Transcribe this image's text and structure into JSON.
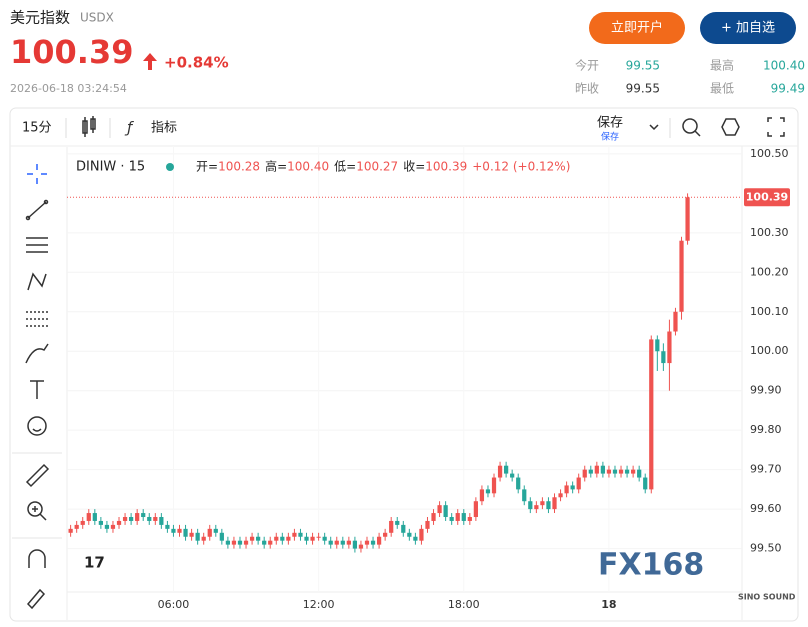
{
  "header": {
    "title": "美元指数",
    "code": "USDX",
    "price": "100.39",
    "change": "+0.84%",
    "time": "2026-06-18 03:24:54",
    "buttons": [
      "立即开户",
      "+ 加自选"
    ],
    "stats": [
      {
        "label": "今开",
        "value": "99.55"
      },
      {
        "label": "最高",
        "value": "100.40"
      },
      {
        "label": "昨收",
        "value": "99.55"
      },
      {
        "label": "最低",
        "value": "99.49"
      }
    ]
  },
  "toolbar": {
    "interval": "15分",
    "indicators": "指标",
    "save": "保存",
    "save_sub": "保存"
  },
  "chart_data": {
    "type": "candlestick",
    "symbol": "DINIW · 15",
    "legend": [
      {
        "label": "开=",
        "value": "100.28"
      },
      {
        "label": "高=",
        "value": "100.40"
      },
      {
        "label": "低=",
        "value": "100.27"
      },
      {
        "label": "收=",
        "value": "100.39"
      }
    ],
    "legend_change": "+0.12 (+0.12%)",
    "last_price": 100.39,
    "watermark": "FX168",
    "watermark_sub": "SINO SOUND",
    "up_color": "#ef5350",
    "down_color": "#26a69a",
    "grid": true,
    "xlim": [
      1.6,
      29.5
    ],
    "ylim": [
      99.39,
      100.52
    ],
    "xticks": [
      {
        "value": 6,
        "label": "06:00"
      },
      {
        "value": 12,
        "label": "12:00"
      },
      {
        "value": 18,
        "label": "18:00"
      },
      {
        "value": 24,
        "label": "18"
      }
    ],
    "yticks": [
      {
        "value": 99.5,
        "label": "99.50"
      },
      {
        "value": 99.6,
        "label": "99.60"
      },
      {
        "value": 99.7,
        "label": "99.70"
      },
      {
        "value": 99.8,
        "label": "99.80"
      },
      {
        "value": 99.9,
        "label": "99.90"
      },
      {
        "value": 100,
        "label": "100.00"
      },
      {
        "value": 100.1,
        "label": "100.10"
      },
      {
        "value": 100.2,
        "label": "100.20"
      },
      {
        "value": 100.3,
        "label": "100.30"
      },
      {
        "value": 100.5,
        "label": "100.50"
      }
    ],
    "x": [
      1.75,
      2,
      2.25,
      2.5,
      2.75,
      3,
      3.25,
      3.5,
      3.75,
      4,
      4.25,
      4.5,
      4.75,
      5,
      5.25,
      5.5,
      5.75,
      6,
      6.25,
      6.5,
      6.75,
      7,
      7.25,
      7.5,
      7.75,
      8,
      8.25,
      8.5,
      8.75,
      9,
      9.25,
      9.5,
      9.75,
      10,
      10.25,
      10.5,
      10.75,
      11,
      11.25,
      11.5,
      11.75,
      12,
      12.25,
      12.5,
      12.75,
      13,
      13.25,
      13.5,
      13.75,
      14,
      14.25,
      14.5,
      14.75,
      15,
      15.25,
      15.5,
      15.75,
      16,
      16.25,
      16.5,
      16.75,
      17,
      17.25,
      17.5,
      17.75,
      18,
      18.25,
      18.5,
      18.75,
      19,
      19.25,
      19.5,
      19.75,
      20,
      20.25,
      20.5,
      20.75,
      21,
      21.25,
      21.5,
      21.75,
      22,
      22.25,
      22.5,
      22.75,
      23,
      23.25,
      23.5,
      23.75,
      24,
      24.25,
      24.5,
      24.75,
      25,
      25.25,
      25.5,
      25.75,
      26,
      26.25,
      26.5,
      26.75,
      27,
      27.25
    ],
    "open": [
      99.54,
      99.55,
      99.56,
      99.57,
      99.59,
      99.57,
      99.56,
      99.55,
      99.56,
      99.57,
      99.58,
      99.57,
      99.59,
      99.58,
      99.57,
      99.58,
      99.56,
      99.55,
      99.54,
      99.55,
      99.53,
      99.54,
      99.52,
      99.53,
      99.55,
      99.54,
      99.52,
      99.51,
      99.52,
      99.51,
      99.52,
      99.53,
      99.52,
      99.51,
      99.52,
      99.53,
      99.52,
      99.53,
      99.54,
      99.53,
      99.52,
      99.53,
      99.53,
      99.52,
      99.51,
      99.52,
      99.51,
      99.52,
      99.5,
      99.51,
      99.52,
      99.51,
      99.53,
      99.54,
      99.57,
      99.56,
      99.54,
      99.53,
      99.52,
      99.55,
      99.57,
      99.59,
      99.61,
      99.58,
      99.57,
      99.59,
      99.57,
      99.58,
      99.62,
      99.65,
      99.64,
      99.68,
      99.71,
      99.69,
      99.68,
      99.65,
      99.62,
      99.6,
      99.61,
      99.62,
      99.6,
      99.63,
      99.64,
      99.66,
      99.65,
      99.68,
      99.7,
      99.69,
      99.71,
      99.69,
      99.7,
      99.69,
      99.7,
      99.69,
      99.7,
      99.68,
      99.65,
      100.03,
      100.0,
      99.97,
      100.05,
      100.1,
      100.28
    ],
    "high": [
      99.56,
      99.57,
      99.58,
      99.6,
      99.6,
      99.58,
      99.57,
      99.57,
      99.58,
      99.59,
      99.59,
      99.6,
      99.6,
      99.59,
      99.59,
      99.59,
      99.57,
      99.56,
      99.56,
      99.56,
      99.55,
      99.55,
      99.54,
      99.56,
      99.56,
      99.55,
      99.53,
      99.53,
      99.53,
      99.53,
      99.54,
      99.54,
      99.53,
      99.53,
      99.54,
      99.54,
      99.54,
      99.55,
      99.55,
      99.54,
      99.54,
      99.54,
      99.54,
      99.53,
      99.53,
      99.53,
      99.53,
      99.53,
      99.52,
      99.53,
      99.53,
      99.54,
      99.55,
      99.58,
      99.58,
      99.57,
      99.55,
      99.54,
      99.56,
      99.58,
      99.6,
      99.62,
      99.62,
      99.59,
      99.6,
      99.6,
      99.59,
      99.63,
      99.66,
      99.66,
      99.69,
      99.72,
      99.72,
      99.7,
      99.69,
      99.66,
      99.63,
      99.62,
      99.63,
      99.63,
      99.64,
      99.65,
      99.67,
      99.67,
      99.69,
      99.71,
      99.71,
      99.72,
      99.72,
      99.71,
      99.71,
      99.71,
      99.71,
      99.71,
      99.71,
      99.69,
      100.04,
      100.04,
      100.02,
      100.08,
      100.11,
      100.29,
      100.4
    ],
    "low": [
      99.53,
      99.54,
      99.55,
      99.56,
      99.56,
      99.55,
      99.54,
      99.54,
      99.55,
      99.56,
      99.56,
      99.56,
      99.57,
      99.56,
      99.56,
      99.55,
      99.54,
      99.53,
      99.53,
      99.52,
      99.52,
      99.51,
      99.51,
      99.52,
      99.53,
      99.51,
      99.5,
      99.5,
      99.5,
      99.5,
      99.51,
      99.51,
      99.5,
      99.5,
      99.51,
      99.51,
      99.51,
      99.52,
      99.52,
      99.51,
      99.51,
      99.52,
      99.51,
      99.5,
      99.5,
      99.5,
      99.5,
      99.49,
      99.49,
      99.5,
      99.5,
      99.5,
      99.52,
      99.53,
      99.55,
      99.53,
      99.52,
      99.51,
      99.51,
      99.54,
      99.56,
      99.58,
      99.57,
      99.56,
      99.56,
      99.56,
      99.56,
      99.57,
      99.61,
      99.63,
      99.63,
      99.67,
      99.68,
      99.67,
      99.64,
      99.61,
      99.59,
      99.59,
      99.6,
      99.59,
      99.59,
      99.62,
      99.63,
      99.64,
      99.64,
      99.67,
      99.68,
      99.68,
      99.68,
      99.68,
      99.68,
      99.68,
      99.68,
      99.68,
      99.67,
      99.64,
      99.64,
      99.95,
      99.95,
      99.9,
      100.04,
      100.08,
      100.27
    ],
    "close": [
      99.55,
      99.56,
      99.57,
      99.59,
      99.57,
      99.56,
      99.55,
      99.56,
      99.57,
      99.58,
      99.57,
      99.59,
      99.58,
      99.57,
      99.58,
      99.56,
      99.55,
      99.54,
      99.55,
      99.53,
      99.54,
      99.52,
      99.53,
      99.55,
      99.54,
      99.52,
      99.51,
      99.52,
      99.51,
      99.52,
      99.53,
      99.52,
      99.51,
      99.52,
      99.53,
      99.52,
      99.53,
      99.54,
      99.53,
      99.52,
      99.53,
      99.53,
      99.52,
      99.51,
      99.52,
      99.51,
      99.52,
      99.5,
      99.51,
      99.52,
      99.51,
      99.53,
      99.54,
      99.57,
      99.56,
      99.54,
      99.53,
      99.52,
      99.55,
      99.57,
      99.59,
      99.61,
      99.58,
      99.57,
      99.59,
      99.57,
      99.58,
      99.62,
      99.65,
      99.64,
      99.68,
      99.71,
      99.69,
      99.68,
      99.65,
      99.62,
      99.6,
      99.61,
      99.62,
      99.6,
      99.63,
      99.64,
      99.66,
      99.65,
      99.68,
      99.7,
      99.69,
      99.71,
      99.69,
      99.7,
      99.69,
      99.7,
      99.69,
      99.7,
      99.68,
      99.65,
      100.03,
      100.0,
      99.97,
      100.05,
      100.1,
      100.28,
      100.39
    ]
  }
}
